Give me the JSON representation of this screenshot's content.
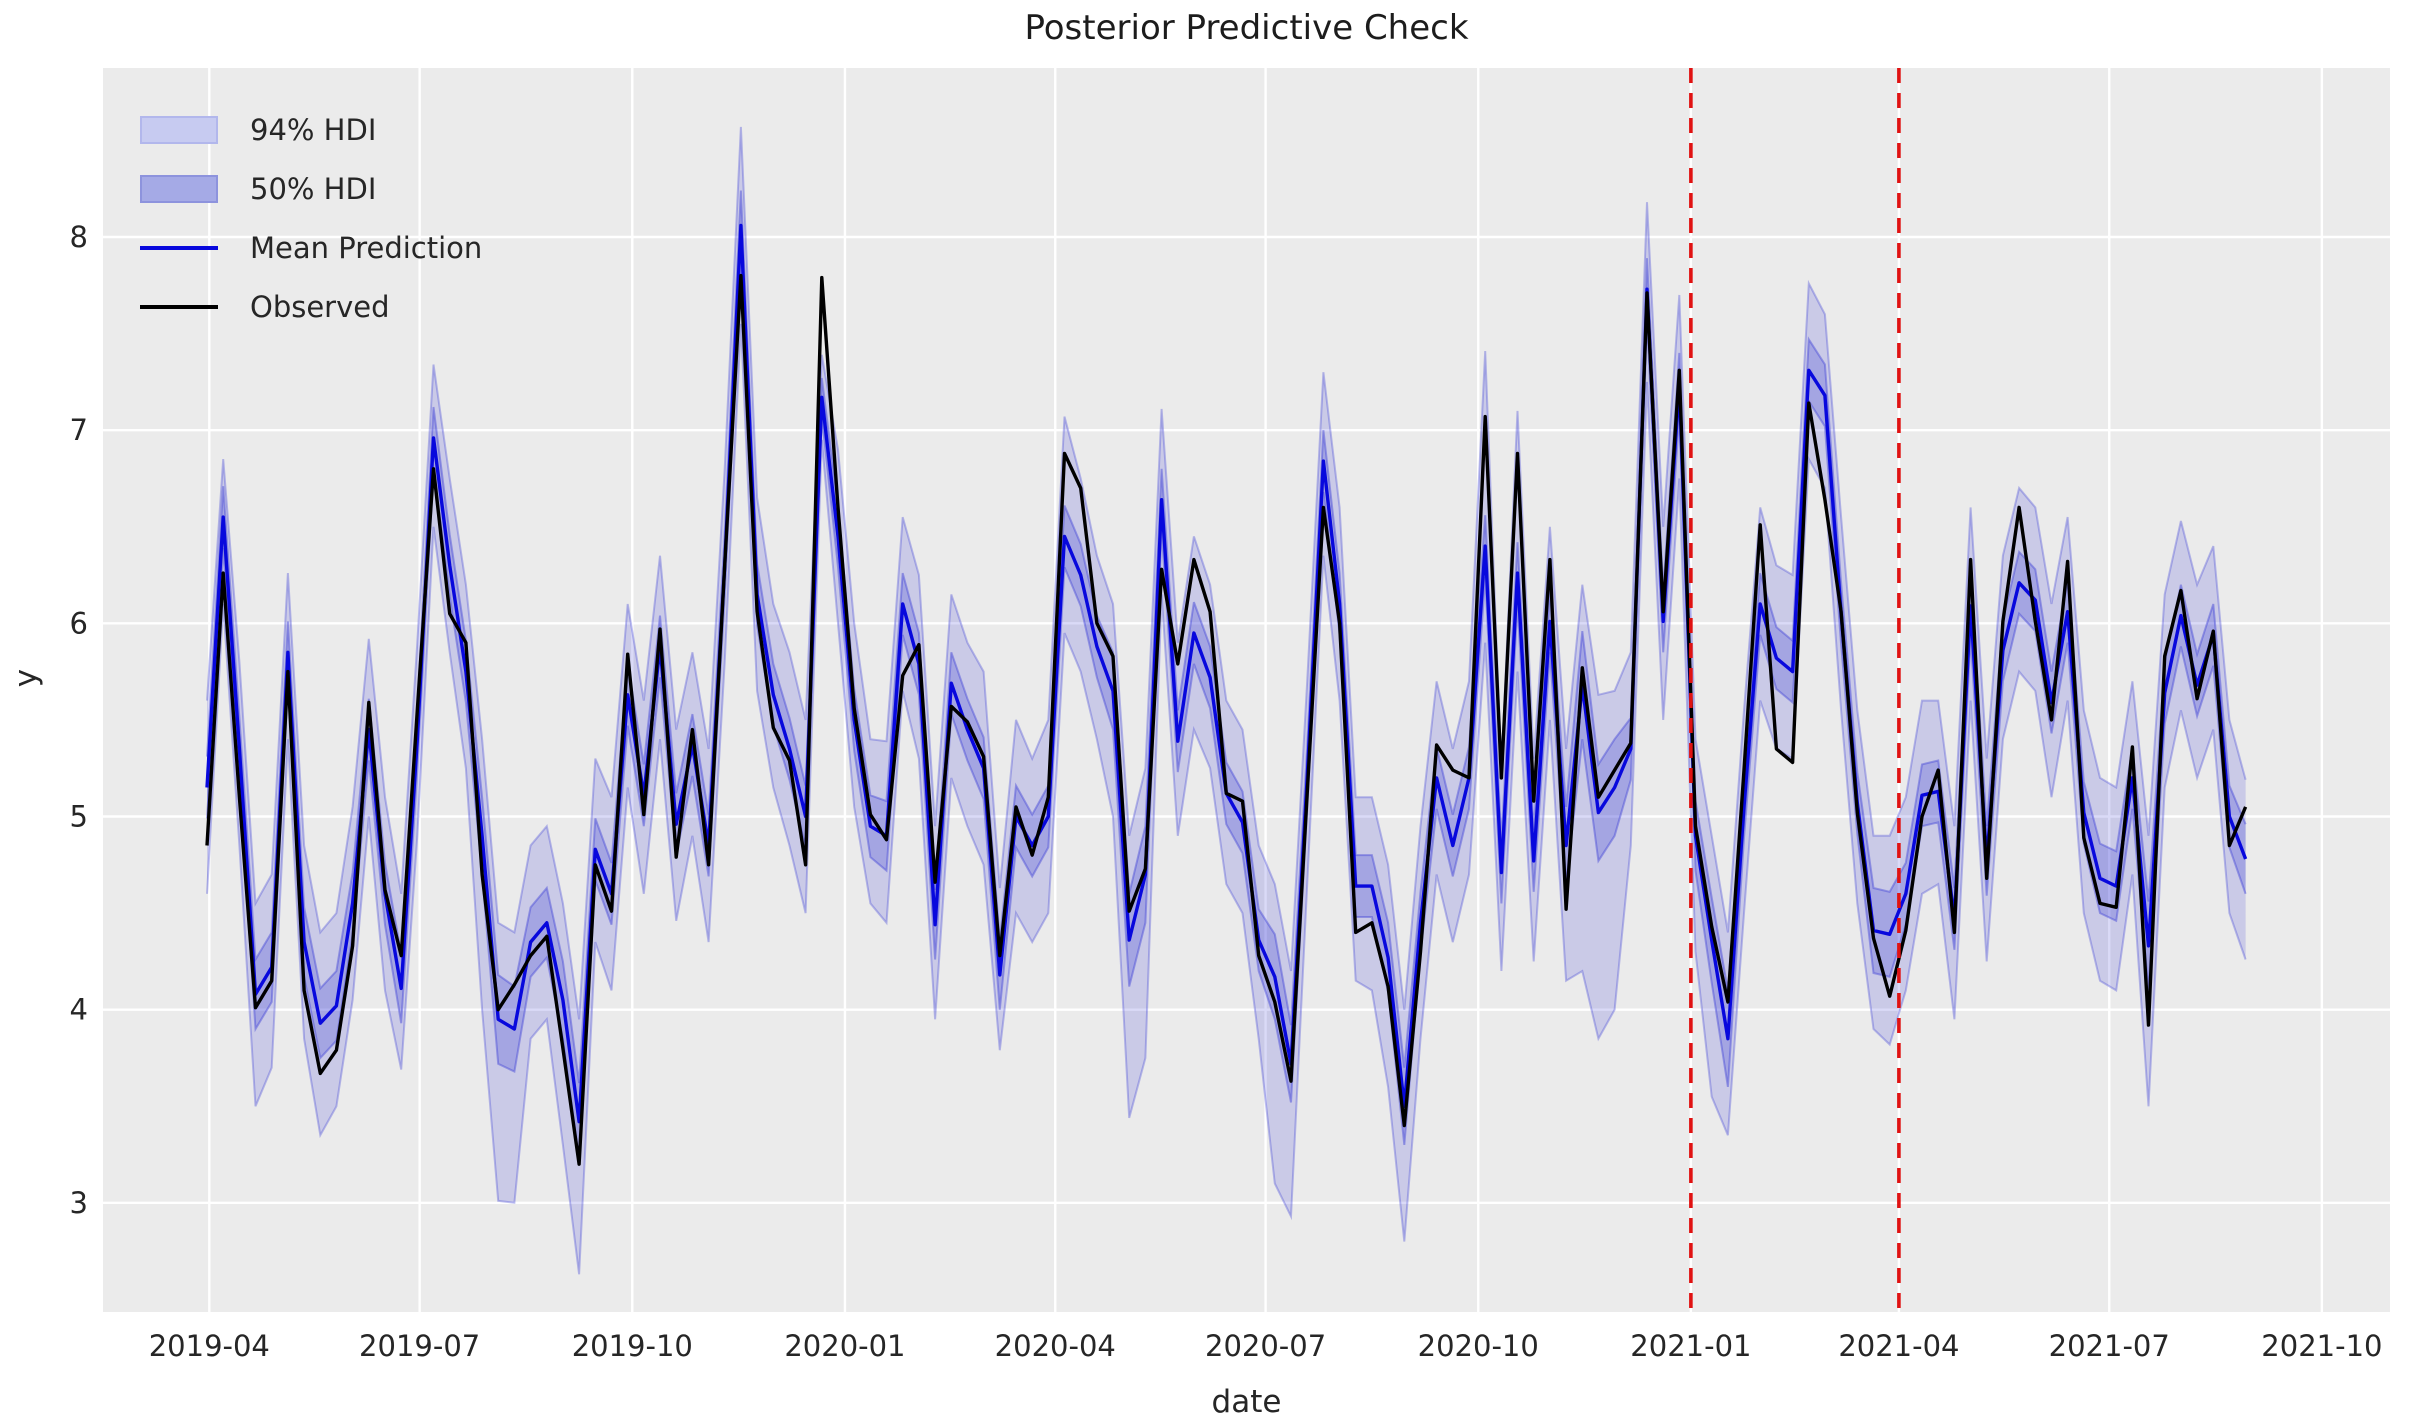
{
  "figure": {
    "title": "Posterior Predictive Check",
    "xlabel": "date",
    "ylabel": "y"
  },
  "legend": {
    "items": [
      {
        "label": "94% HDI",
        "type": "patch",
        "fill": "#c7cbf1",
        "edge": "#b2b7ec"
      },
      {
        "label": "50% HDI",
        "type": "patch",
        "fill": "#a5aae6",
        "edge": "#8d93dd"
      },
      {
        "label": "Mean Prediction",
        "type": "line",
        "color": "#0808dd"
      },
      {
        "label": "Observed",
        "type": "line",
        "color": "#000000"
      }
    ]
  },
  "axes": {
    "background": "#ebebeb",
    "grid_color": "#ffffff",
    "tick_label_color": "#262626",
    "y_ticks": [
      3,
      4,
      5,
      6,
      7,
      8
    ],
    "x_ticks": [
      {
        "label": "2019-04",
        "date": "2019-04-01"
      },
      {
        "label": "2019-07",
        "date": "2019-07-01"
      },
      {
        "label": "2019-10",
        "date": "2019-10-01"
      },
      {
        "label": "2020-01",
        "date": "2020-01-01"
      },
      {
        "label": "2020-04",
        "date": "2020-04-01"
      },
      {
        "label": "2020-07",
        "date": "2020-07-01"
      },
      {
        "label": "2020-10",
        "date": "2020-10-01"
      },
      {
        "label": "2021-01",
        "date": "2021-01-01"
      },
      {
        "label": "2021-04",
        "date": "2021-04-01"
      },
      {
        "label": "2021-07",
        "date": "2021-07-01"
      },
      {
        "label": "2021-10",
        "date": "2021-10-01"
      }
    ]
  },
  "chart_data": {
    "type": "line",
    "title": "Posterior Predictive Check",
    "xlabel": "date",
    "ylabel": "y",
    "grid": true,
    "legend_position": "upper left",
    "ylim": [
      2.44,
      8.88
    ],
    "x_start_date": "2019-03-31",
    "x_freq_days": 7,
    "n_points": 127,
    "vlines": [
      {
        "date": "2021-01-01",
        "color": "#e01212",
        "style": "dashed"
      },
      {
        "date": "2021-04-01",
        "color": "#e01212",
        "style": "dashed"
      }
    ],
    "series": [
      {
        "name": "Observed",
        "color": "#000000",
        "values": [
          4.85,
          6.26,
          5.1,
          4.01,
          4.15,
          5.75,
          4.1,
          3.67,
          3.79,
          4.33,
          5.59,
          4.62,
          4.28,
          5.55,
          6.8,
          6.05,
          5.9,
          4.7,
          4.0,
          4.13,
          4.28,
          4.38,
          3.8,
          3.2,
          4.75,
          4.51,
          5.84,
          5.01,
          5.97,
          4.79,
          5.45,
          4.75,
          6.3,
          7.8,
          6.06,
          5.46,
          5.29,
          4.75,
          7.79,
          6.6,
          5.56,
          5.01,
          4.88,
          5.73,
          5.89,
          4.66,
          5.57,
          5.49,
          5.31,
          4.28,
          5.05,
          4.8,
          5.1,
          6.88,
          6.7,
          6.0,
          5.83,
          4.51,
          4.73,
          6.28,
          5.79,
          6.33,
          6.06,
          5.12,
          5.08,
          4.28,
          4.04,
          3.63,
          5.12,
          6.6,
          6.0,
          4.4,
          4.45,
          4.12,
          3.4,
          4.3,
          5.37,
          5.24,
          5.2,
          7.07,
          5.2,
          6.88,
          5.08,
          6.33,
          4.52,
          5.77,
          5.1,
          5.24,
          5.38,
          7.71,
          6.06,
          7.31,
          4.95,
          4.43,
          4.04,
          5.24,
          6.51,
          5.35,
          5.28,
          7.14,
          6.64,
          6.06,
          5.02,
          4.37,
          4.07,
          4.41,
          5.0,
          5.24,
          4.4,
          6.33,
          4.68,
          6.01,
          6.6,
          6.01,
          5.5,
          6.32,
          4.89,
          4.55,
          4.53,
          5.36,
          3.92,
          5.83,
          6.17,
          5.61,
          5.96,
          4.85,
          5.05
        ]
      },
      {
        "name": "Mean Prediction",
        "color": "#0808dd",
        "values": [
          5.15,
          6.55,
          5.35,
          4.08,
          4.22,
          5.85,
          4.35,
          3.93,
          4.02,
          4.55,
          5.45,
          4.6,
          4.11,
          5.4,
          6.96,
          6.3,
          5.75,
          4.9,
          3.95,
          3.9,
          4.35,
          4.45,
          4.05,
          3.42,
          4.83,
          4.6,
          5.63,
          5.11,
          5.88,
          4.96,
          5.37,
          4.85,
          6.3,
          8.06,
          6.15,
          5.63,
          5.35,
          5.0,
          7.17,
          6.45,
          5.5,
          4.95,
          4.9,
          6.1,
          5.79,
          4.44,
          5.69,
          5.45,
          5.25,
          4.18,
          5.0,
          4.85,
          5.0,
          6.45,
          6.25,
          5.88,
          5.65,
          4.36,
          4.7,
          6.64,
          5.39,
          5.95,
          5.72,
          5.12,
          4.97,
          4.36,
          4.17,
          3.72,
          5.2,
          6.84,
          6.1,
          4.64,
          4.64,
          4.27,
          3.5,
          4.45,
          5.2,
          4.85,
          5.2,
          6.4,
          4.71,
          6.26,
          4.77,
          6.01,
          4.85,
          5.68,
          5.02,
          5.15,
          5.35,
          7.73,
          6.01,
          7.24,
          4.9,
          4.36,
          3.85,
          5.05,
          6.1,
          5.82,
          5.75,
          7.31,
          7.18,
          6.05,
          5.07,
          4.41,
          4.39,
          4.6,
          5.11,
          5.13,
          4.47,
          6.09,
          4.77,
          5.86,
          6.21,
          6.12,
          5.59,
          6.06,
          5.02,
          4.68,
          4.64,
          5.2,
          4.33,
          5.64,
          6.04,
          5.68,
          5.94,
          5.0,
          4.78
        ]
      }
    ],
    "bands": [
      {
        "name": "94% HDI",
        "fill": "#4448d8",
        "fill_opacity": 0.2,
        "edge_opacity": 0.35,
        "lower": [
          4.6,
          6.1,
          4.85,
          3.5,
          3.7,
          5.4,
          3.85,
          3.35,
          3.5,
          4.05,
          5.0,
          4.1,
          3.69,
          4.9,
          6.5,
          5.85,
          5.25,
          4.0,
          3.01,
          3.0,
          3.85,
          3.95,
          3.3,
          2.63,
          4.35,
          4.1,
          5.15,
          4.6,
          5.4,
          4.46,
          4.9,
          4.35,
          5.8,
          7.55,
          5.65,
          5.15,
          4.85,
          4.5,
          6.95,
          6.0,
          5.05,
          4.55,
          4.45,
          5.65,
          5.3,
          3.95,
          5.2,
          4.95,
          4.75,
          3.79,
          4.5,
          4.35,
          4.5,
          5.95,
          5.75,
          5.4,
          5.0,
          3.44,
          3.75,
          6.15,
          4.9,
          5.45,
          5.25,
          4.65,
          4.5,
          3.85,
          3.1,
          2.93,
          4.65,
          6.35,
          5.6,
          4.15,
          4.1,
          3.6,
          2.8,
          3.85,
          4.7,
          4.35,
          4.7,
          5.9,
          4.2,
          5.75,
          4.25,
          5.5,
          4.15,
          4.2,
          3.85,
          4.0,
          4.85,
          7.25,
          5.5,
          6.75,
          4.3,
          3.55,
          3.35,
          4.5,
          5.6,
          5.35,
          5.3,
          6.85,
          6.7,
          5.55,
          4.55,
          3.9,
          3.82,
          4.1,
          4.6,
          4.65,
          3.95,
          5.6,
          4.25,
          5.4,
          5.75,
          5.65,
          5.1,
          5.6,
          4.5,
          4.15,
          4.1,
          4.7,
          3.5,
          5.15,
          5.55,
          5.2,
          5.45,
          4.5,
          4.26
        ],
        "upper": [
          5.6,
          6.85,
          5.8,
          4.55,
          4.7,
          6.26,
          4.85,
          4.4,
          4.5,
          5.05,
          5.92,
          5.1,
          4.6,
          5.9,
          7.34,
          6.75,
          6.2,
          5.4,
          4.45,
          4.4,
          4.85,
          4.95,
          4.55,
          3.95,
          5.3,
          5.1,
          6.1,
          5.6,
          6.35,
          5.45,
          5.85,
          5.35,
          6.8,
          8.57,
          6.65,
          6.1,
          5.85,
          5.5,
          7.39,
          6.9,
          6.0,
          5.4,
          5.39,
          6.55,
          6.25,
          4.95,
          6.15,
          5.9,
          5.75,
          4.63,
          5.5,
          5.3,
          5.5,
          7.07,
          6.75,
          6.35,
          6.1,
          4.9,
          5.25,
          7.11,
          5.9,
          6.45,
          6.2,
          5.6,
          5.45,
          4.85,
          4.65,
          4.2,
          5.7,
          7.3,
          6.6,
          5.1,
          5.1,
          4.75,
          4.0,
          4.95,
          5.7,
          5.35,
          5.7,
          7.41,
          5.25,
          7.1,
          5.3,
          6.5,
          5.35,
          6.2,
          5.63,
          5.65,
          5.85,
          8.18,
          6.5,
          7.7,
          5.4,
          4.9,
          4.4,
          5.55,
          6.6,
          6.3,
          6.25,
          7.76,
          7.6,
          6.55,
          5.55,
          4.9,
          4.9,
          5.1,
          5.6,
          5.6,
          4.95,
          6.6,
          5.3,
          6.35,
          6.7,
          6.6,
          6.1,
          6.55,
          5.55,
          5.2,
          5.15,
          5.7,
          4.9,
          6.15,
          6.53,
          6.2,
          6.4,
          5.5,
          5.19
        ]
      },
      {
        "name": "50% HDI",
        "fill": "#4448d8",
        "fill_opacity": 0.28,
        "edge_opacity": 0.45,
        "lower": [
          4.99,
          6.39,
          5.19,
          3.9,
          4.04,
          5.69,
          4.17,
          3.75,
          3.84,
          4.39,
          5.29,
          4.44,
          3.93,
          5.24,
          6.8,
          6.14,
          5.59,
          4.7,
          3.72,
          3.68,
          4.17,
          4.27,
          3.85,
          3.22,
          4.67,
          4.44,
          5.47,
          4.95,
          5.72,
          4.8,
          5.21,
          4.69,
          6.14,
          7.88,
          5.99,
          5.47,
          5.19,
          4.84,
          7.07,
          6.29,
          5.34,
          4.79,
          4.72,
          5.94,
          5.63,
          4.26,
          5.53,
          5.29,
          5.09,
          4.0,
          4.84,
          4.69,
          4.84,
          6.29,
          6.09,
          5.72,
          5.45,
          4.12,
          4.45,
          6.48,
          5.23,
          5.79,
          5.56,
          4.96,
          4.81,
          4.2,
          3.95,
          3.52,
          5.04,
          6.68,
          5.94,
          4.48,
          4.48,
          4.09,
          3.3,
          4.29,
          5.04,
          4.69,
          5.04,
          6.24,
          4.55,
          6.1,
          4.61,
          5.85,
          4.65,
          5.4,
          4.77,
          4.9,
          5.19,
          7.57,
          5.85,
          7.08,
          4.72,
          4.14,
          3.6,
          4.89,
          5.94,
          5.66,
          5.59,
          7.15,
          7.02,
          5.89,
          4.91,
          4.19,
          4.17,
          4.44,
          4.95,
          4.97,
          4.31,
          5.93,
          4.59,
          5.7,
          6.05,
          5.96,
          5.43,
          5.9,
          4.86,
          4.5,
          4.46,
          5.04,
          4.1,
          5.48,
          5.88,
          5.52,
          5.78,
          4.84,
          4.6
        ],
        "upper": [
          5.31,
          6.71,
          5.51,
          4.26,
          4.4,
          6.01,
          4.53,
          4.11,
          4.2,
          4.71,
          5.61,
          4.76,
          4.29,
          5.56,
          7.12,
          6.46,
          5.91,
          5.1,
          4.18,
          4.12,
          4.53,
          4.63,
          4.25,
          3.62,
          4.99,
          4.76,
          5.79,
          5.27,
          6.04,
          5.12,
          5.53,
          5.01,
          6.46,
          8.24,
          6.31,
          5.79,
          5.51,
          5.16,
          7.27,
          6.61,
          5.66,
          5.11,
          5.08,
          6.26,
          5.95,
          4.62,
          5.85,
          5.61,
          5.41,
          4.36,
          5.16,
          5.01,
          5.16,
          6.61,
          6.41,
          6.04,
          5.85,
          4.6,
          4.95,
          6.8,
          5.55,
          6.11,
          5.88,
          5.28,
          5.13,
          4.52,
          4.39,
          3.92,
          5.36,
          7.0,
          6.26,
          4.8,
          4.8,
          4.45,
          3.7,
          4.61,
          5.36,
          5.01,
          5.36,
          6.56,
          4.87,
          6.42,
          4.93,
          6.17,
          5.05,
          5.96,
          5.27,
          5.4,
          5.51,
          7.89,
          6.17,
          7.4,
          5.08,
          4.58,
          4.1,
          5.21,
          6.26,
          5.98,
          5.91,
          7.47,
          7.34,
          6.21,
          5.23,
          4.63,
          4.61,
          4.76,
          5.27,
          5.29,
          4.63,
          6.25,
          4.95,
          6.02,
          6.37,
          6.28,
          5.75,
          6.22,
          5.18,
          4.86,
          4.82,
          5.36,
          4.56,
          5.8,
          6.2,
          5.84,
          6.1,
          5.16,
          4.96
        ]
      }
    ]
  }
}
